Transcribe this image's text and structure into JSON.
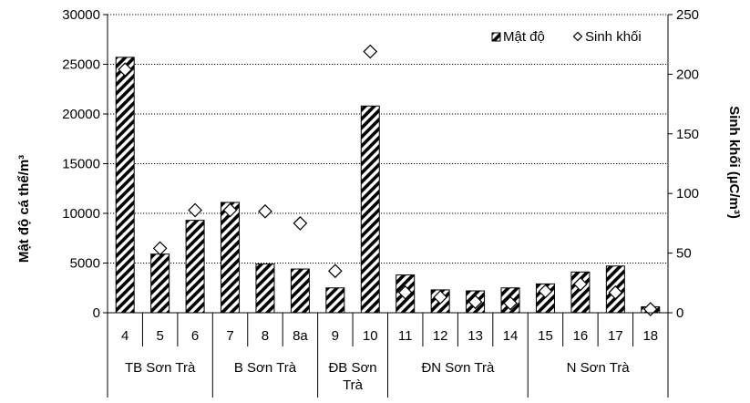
{
  "chart_data": {
    "type": "bar",
    "title": "",
    "ylabel_left": "Mật độ cá thể/m³",
    "ylabel_right": "Sinh khối  (µC/m³)",
    "ylim_left": [
      0,
      30000
    ],
    "ylim_right": [
      0,
      250
    ],
    "yticks_left": [
      "0",
      "5000",
      "10000",
      "15000",
      "20000",
      "25000",
      "30000"
    ],
    "yticks_right": [
      "0",
      "50",
      "100",
      "150",
      "200",
      "250"
    ],
    "grid": "horizontal dotted",
    "legend_position": "top-right",
    "categories": [
      "4",
      "5",
      "6",
      "7",
      "8",
      "8a",
      "9",
      "10",
      "11",
      "12",
      "13",
      "14",
      "15",
      "16",
      "17",
      "18"
    ],
    "groups": [
      {
        "label": "TB Sơn Trà",
        "label_lines": [
          "TB Sơn Trà"
        ],
        "start": 0,
        "end": 2
      },
      {
        "label": "B Sơn Trà",
        "label_lines": [
          "B Sơn Trà"
        ],
        "start": 3,
        "end": 5
      },
      {
        "label": "ĐB Sơn Trà",
        "label_lines": [
          "ĐB Sơn",
          "Trà"
        ],
        "start": 6,
        "end": 7
      },
      {
        "label": "ĐN Sơn Trà",
        "label_lines": [
          "ĐN Sơn Trà"
        ],
        "start": 8,
        "end": 11
      },
      {
        "label": "N Sơn Trà",
        "label_lines": [
          "N Sơn Trà"
        ],
        "start": 12,
        "end": 15
      }
    ],
    "series": [
      {
        "name": "Mật độ",
        "type": "bar",
        "axis": "left",
        "marker": "diagonal-hatch",
        "values": [
          25700,
          5900,
          9300,
          11100,
          4900,
          4400,
          2500,
          20800,
          3800,
          2300,
          2200,
          2500,
          2900,
          4100,
          4700,
          600
        ]
      },
      {
        "name": "Sinh khối",
        "type": "scatter",
        "axis": "right",
        "marker": "diamond",
        "values": [
          204,
          54,
          86,
          86,
          85,
          75,
          35,
          219,
          17,
          13,
          9,
          8,
          18,
          24,
          17,
          3
        ]
      }
    ]
  }
}
